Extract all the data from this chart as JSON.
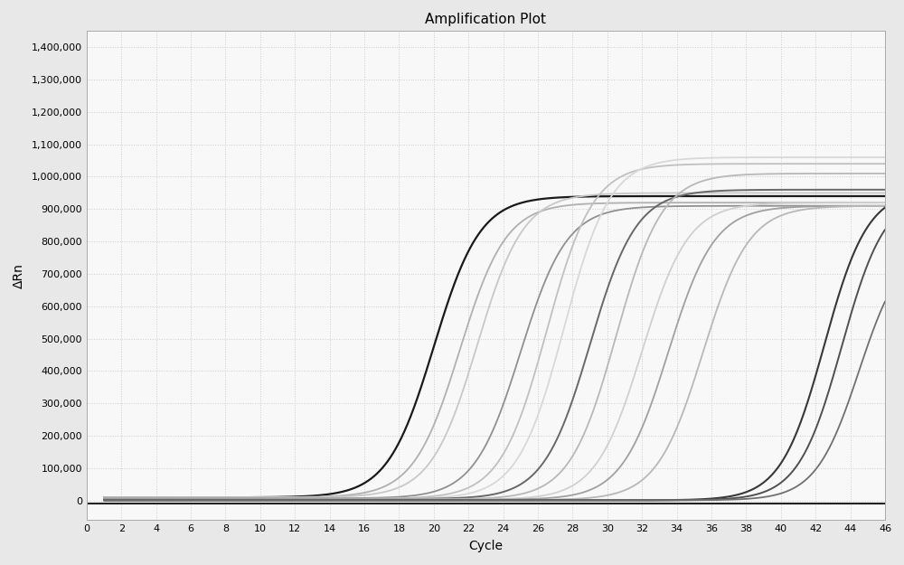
{
  "title": "Amplification Plot",
  "xlabel": "Cycle",
  "ylabel": "ΔRn",
  "xlim": [
    0,
    46
  ],
  "ylim": [
    -60000,
    1450000
  ],
  "xticks": [
    0,
    2,
    4,
    6,
    8,
    10,
    12,
    14,
    16,
    18,
    20,
    22,
    24,
    26,
    28,
    30,
    32,
    34,
    36,
    38,
    40,
    42,
    44,
    46
  ],
  "yticks": [
    0,
    100000,
    200000,
    300000,
    400000,
    500000,
    600000,
    700000,
    800000,
    900000,
    1000000,
    1100000,
    1200000,
    1300000,
    1400000
  ],
  "background_color": "#e8e8e8",
  "plot_bg_color": "#f8f8f8",
  "grid_color": "#cccccc",
  "curves": [
    {
      "midpoint": 20.0,
      "steepness": 0.75,
      "plateau": 940000,
      "baseline": 10000,
      "color": "#1a1a1a",
      "lw": 1.6
    },
    {
      "midpoint": 21.5,
      "steepness": 0.75,
      "plateau": 920000,
      "baseline": 10000,
      "color": "#b0b0b0",
      "lw": 1.3
    },
    {
      "midpoint": 22.5,
      "steepness": 0.75,
      "plateau": 950000,
      "baseline": 10000,
      "color": "#c8c8c8",
      "lw": 1.3
    },
    {
      "midpoint": 25.0,
      "steepness": 0.75,
      "plateau": 910000,
      "baseline": 7000,
      "color": "#909090",
      "lw": 1.3
    },
    {
      "midpoint": 26.5,
      "steepness": 0.75,
      "plateau": 1040000,
      "baseline": 6000,
      "color": "#c0c0c0",
      "lw": 1.3
    },
    {
      "midpoint": 27.5,
      "steepness": 0.75,
      "plateau": 1060000,
      "baseline": 5000,
      "color": "#d8d8d8",
      "lw": 1.3
    },
    {
      "midpoint": 29.0,
      "steepness": 0.75,
      "plateau": 960000,
      "baseline": 5000,
      "color": "#686868",
      "lw": 1.4
    },
    {
      "midpoint": 30.5,
      "steepness": 0.75,
      "plateau": 1010000,
      "baseline": 4000,
      "color": "#b8b8b8",
      "lw": 1.3
    },
    {
      "midpoint": 32.0,
      "steepness": 0.75,
      "plateau": 920000,
      "baseline": 3000,
      "color": "#d0d0d0",
      "lw": 1.3
    },
    {
      "midpoint": 33.5,
      "steepness": 0.75,
      "plateau": 910000,
      "baseline": 3000,
      "color": "#a0a0a0",
      "lw": 1.3
    },
    {
      "midpoint": 35.5,
      "steepness": 0.75,
      "plateau": 910000,
      "baseline": 2000,
      "color": "#b8b8b8",
      "lw": 1.3
    },
    {
      "midpoint": 42.5,
      "steepness": 0.8,
      "plateau": 960000,
      "baseline": 1000,
      "color": "#383838",
      "lw": 1.5
    },
    {
      "midpoint": 43.5,
      "steepness": 0.8,
      "plateau": 950000,
      "baseline": 1000,
      "color": "#505050",
      "lw": 1.4
    },
    {
      "midpoint": 44.5,
      "steepness": 0.8,
      "plateau": 800000,
      "baseline": 1000,
      "color": "#707070",
      "lw": 1.3
    }
  ],
  "flat_line": {
    "y": -10000,
    "color": "#222222",
    "lw": 1.5
  }
}
